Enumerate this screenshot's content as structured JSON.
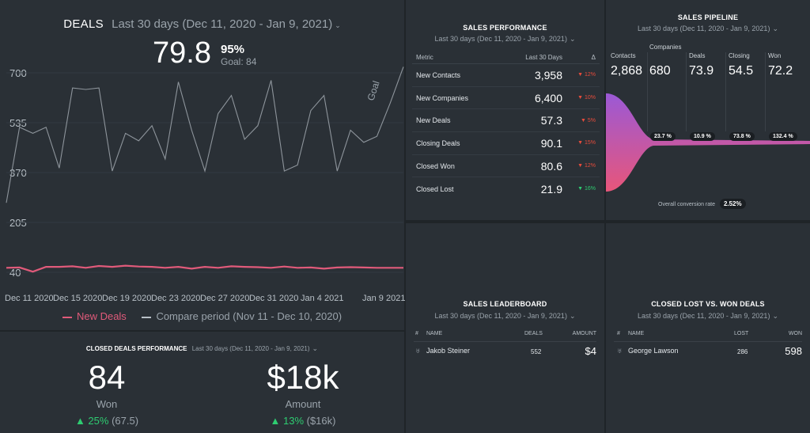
{
  "deals": {
    "title": "DEALS",
    "range": "Last 30 days (Dec 11, 2020 - Jan 9, 2021)",
    "value": "79.8",
    "percent": "95%",
    "goal": "Goal: 84",
    "goal_line_label": "Goal",
    "y_ticks": [
      "700",
      "535",
      "370",
      "205",
      "40"
    ],
    "x_ticks": [
      "Dec 11 2020",
      "Dec 15 2020",
      "Dec 19 2020",
      "Dec 23 2020",
      "Dec 27 2020",
      "Dec 31 2020",
      "Jan 4 2021",
      "Jan 9 2021"
    ],
    "legend": {
      "series1": "New Deals",
      "series2": "Compare period (Nov 11 - Dec 10, 2020)"
    },
    "colors": {
      "new_deals": "#e05a7a",
      "compare": "#8e959c"
    }
  },
  "chart_data": {
    "type": "line",
    "ylim": [
      40,
      700
    ],
    "y_ticks": [
      700,
      535,
      370,
      205,
      40
    ],
    "x_ticks": [
      "Dec 11 2020",
      "Dec 15 2020",
      "Dec 19 2020",
      "Dec 23 2020",
      "Dec 27 2020",
      "Dec 31 2020",
      "Jan 4 2021",
      "Jan 9 2021"
    ],
    "series": [
      {
        "name": "New Deals",
        "values": [
          55,
          56,
          42,
          58,
          58,
          60,
          55,
          61,
          58,
          62,
          59,
          58,
          55,
          58,
          52,
          58,
          55,
          60,
          58,
          57,
          55,
          59,
          55,
          56,
          52,
          56,
          57,
          56,
          55,
          55,
          55
        ]
      },
      {
        "name": "Compare period (Nov 11 - Dec 10, 2020)",
        "values": [
          270,
          520,
          500,
          520,
          385,
          650,
          645,
          650,
          375,
          500,
          475,
          525,
          415,
          670,
          510,
          375,
          565,
          625,
          480,
          525,
          675,
          375,
          395,
          575,
          625,
          375,
          510,
          470,
          490,
          600,
          720
        ]
      }
    ]
  },
  "closed_perf": {
    "title": "CLOSED DEALS PERFORMANCE",
    "range": "Last 30 days (Dec 11, 2020 - Jan 9, 2021)",
    "won": {
      "value": "84",
      "label": "Won",
      "delta": "▲ 25%",
      "compare": "(67.5)"
    },
    "amount": {
      "value": "$18k",
      "label": "Amount",
      "delta": "▲ 13%",
      "compare": "($16k)"
    }
  },
  "sales_perf": {
    "title": "SALES PERFORMANCE",
    "range": "Last 30 days (Dec 11, 2020 - Jan 9, 2021)",
    "headers": [
      "Metric",
      "Last 30 Days",
      "Δ"
    ],
    "rows": [
      {
        "metric": "New Contacts",
        "value": "3,958",
        "delta": "▼ 12%",
        "dir": "down"
      },
      {
        "metric": "New Companies",
        "value": "6,400",
        "delta": "▼ 10%",
        "dir": "down"
      },
      {
        "metric": "New Deals",
        "value": "57.3",
        "delta": "▼ 5%",
        "dir": "down"
      },
      {
        "metric": "Closing Deals",
        "value": "90.1",
        "delta": "▼ 15%",
        "dir": "down"
      },
      {
        "metric": "Closed Won",
        "value": "80.6",
        "delta": "▼ 12%",
        "dir": "down"
      },
      {
        "metric": "Closed Lost",
        "value": "21.9",
        "delta": "▼ 16%",
        "dir": "up"
      }
    ]
  },
  "pipeline": {
    "title": "SALES PIPELINE",
    "range": "Last 30 days (Dec 11, 2020 - Jan 9, 2021)",
    "stages": [
      {
        "label": "Contacts",
        "value": "2,868"
      },
      {
        "label": "Companies",
        "value": "680"
      },
      {
        "label": "Deals",
        "value": "73.9"
      },
      {
        "label": "Closing",
        "value": "54.5"
      },
      {
        "label": "Won",
        "value": "72.2"
      }
    ],
    "conversions": [
      "23.7 %",
      "10.9 %",
      "73.8 %",
      "132.4 %"
    ],
    "overall_label": "Overall conversion rate",
    "overall_value": "2.52%"
  },
  "leaderboard": {
    "title": "SALES LEADERBOARD",
    "range": "Last 30 days (Dec 11, 2020 - Jan 9, 2021)",
    "headers": {
      "num": "#",
      "name": "NAME",
      "deals": "DEALS",
      "amount": "AMOUNT"
    },
    "rows": [
      {
        "name": "Jakob Steiner",
        "deals": "552",
        "amount": "$4"
      }
    ]
  },
  "lost_won": {
    "title": "CLOSED LOST VS. WON DEALS",
    "range": "Last 30 days (Dec 11, 2020 - Jan 9, 2021)",
    "headers": {
      "num": "#",
      "name": "NAME",
      "lost": "LOST",
      "won": "WON"
    },
    "rows": [
      {
        "name": "George Lawson",
        "lost": "286",
        "won": "598"
      }
    ]
  }
}
